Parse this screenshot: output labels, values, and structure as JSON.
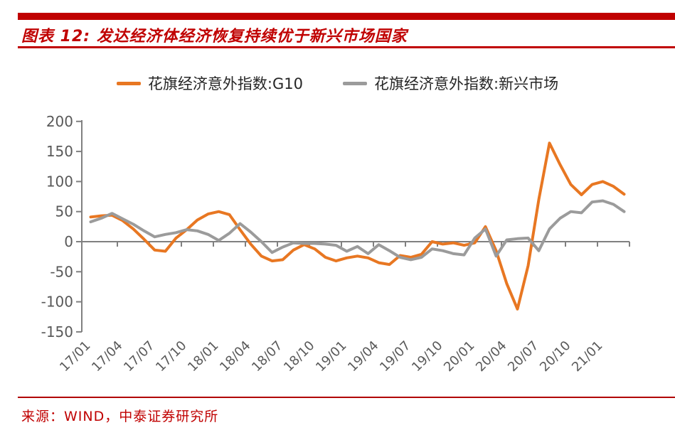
{
  "header": {
    "title": "图表 12:  发达经济体经济恢复持续优于新兴市场国家"
  },
  "footer": {
    "source": "来源：WIND，中泰证券研究所"
  },
  "colors": {
    "accent_red": "#c00000",
    "axis_gray": "#808080",
    "tick_label_gray": "#595959",
    "g10_orange": "#E87722",
    "em_gray": "#9B9B9B"
  },
  "chart_data": {
    "type": "line",
    "title": "图表 12: 发达经济体经济恢复持续优于新兴市场国家",
    "x_freq": "monthly",
    "x": [
      "17/01",
      "17/02",
      "17/03",
      "17/04",
      "17/05",
      "17/06",
      "17/07",
      "17/08",
      "17/09",
      "17/10",
      "17/11",
      "17/12",
      "18/01",
      "18/02",
      "18/03",
      "18/04",
      "18/05",
      "18/06",
      "18/07",
      "18/08",
      "18/09",
      "18/10",
      "18/11",
      "18/12",
      "19/01",
      "19/02",
      "19/03",
      "19/04",
      "19/05",
      "19/06",
      "19/07",
      "19/08",
      "19/09",
      "19/10",
      "19/11",
      "19/12",
      "20/01",
      "20/02",
      "20/03",
      "20/04",
      "20/05",
      "20/06",
      "20/07",
      "20/08",
      "20/09",
      "20/10",
      "20/11",
      "20/12",
      "21/01",
      "21/02",
      "21/03"
    ],
    "x_tick_labels": [
      "17/01",
      "17/04",
      "17/07",
      "17/10",
      "18/01",
      "18/04",
      "18/07",
      "18/10",
      "19/01",
      "19/04",
      "19/07",
      "19/10",
      "20/01",
      "20/04",
      "20/07",
      "20/10",
      "21/01"
    ],
    "y_tick_labels": [
      "200",
      "150",
      "100",
      "50",
      "0",
      "-50",
      "-100",
      "-150"
    ],
    "ylim": [
      -150,
      200
    ],
    "ytick_step": 50,
    "grid": false,
    "zero_baseline": true,
    "legend_position": "top",
    "series": [
      {
        "name": "花旗经济意外指数:G10",
        "color": "#E87722",
        "values": [
          41,
          43,
          44,
          35,
          21,
          4,
          -14,
          -16,
          6,
          20,
          36,
          46,
          50,
          45,
          20,
          -4,
          -24,
          -32,
          -30,
          -14,
          -5,
          -12,
          -26,
          -32,
          -27,
          -24,
          -27,
          -35,
          -38,
          -23,
          -26,
          -21,
          0,
          -4,
          -2,
          -6,
          -2,
          25,
          -15,
          -70,
          -112,
          -40,
          70,
          164,
          128,
          95,
          78,
          95,
          100,
          92,
          79
        ]
      },
      {
        "name": "花旗经济意外指数:新兴市场",
        "color": "#9B9B9B",
        "values": [
          33,
          39,
          47,
          38,
          29,
          18,
          8,
          12,
          15,
          20,
          18,
          12,
          2,
          14,
          30,
          16,
          0,
          -18,
          -9,
          -2,
          -3,
          -3,
          -4,
          -6,
          -16,
          -8,
          -20,
          -5,
          -15,
          -26,
          -30,
          -26,
          -12,
          -15,
          -20,
          -22,
          6,
          21,
          -24,
          3,
          5,
          6,
          -15,
          21,
          39,
          50,
          48,
          66,
          68,
          62,
          50
        ]
      }
    ]
  }
}
